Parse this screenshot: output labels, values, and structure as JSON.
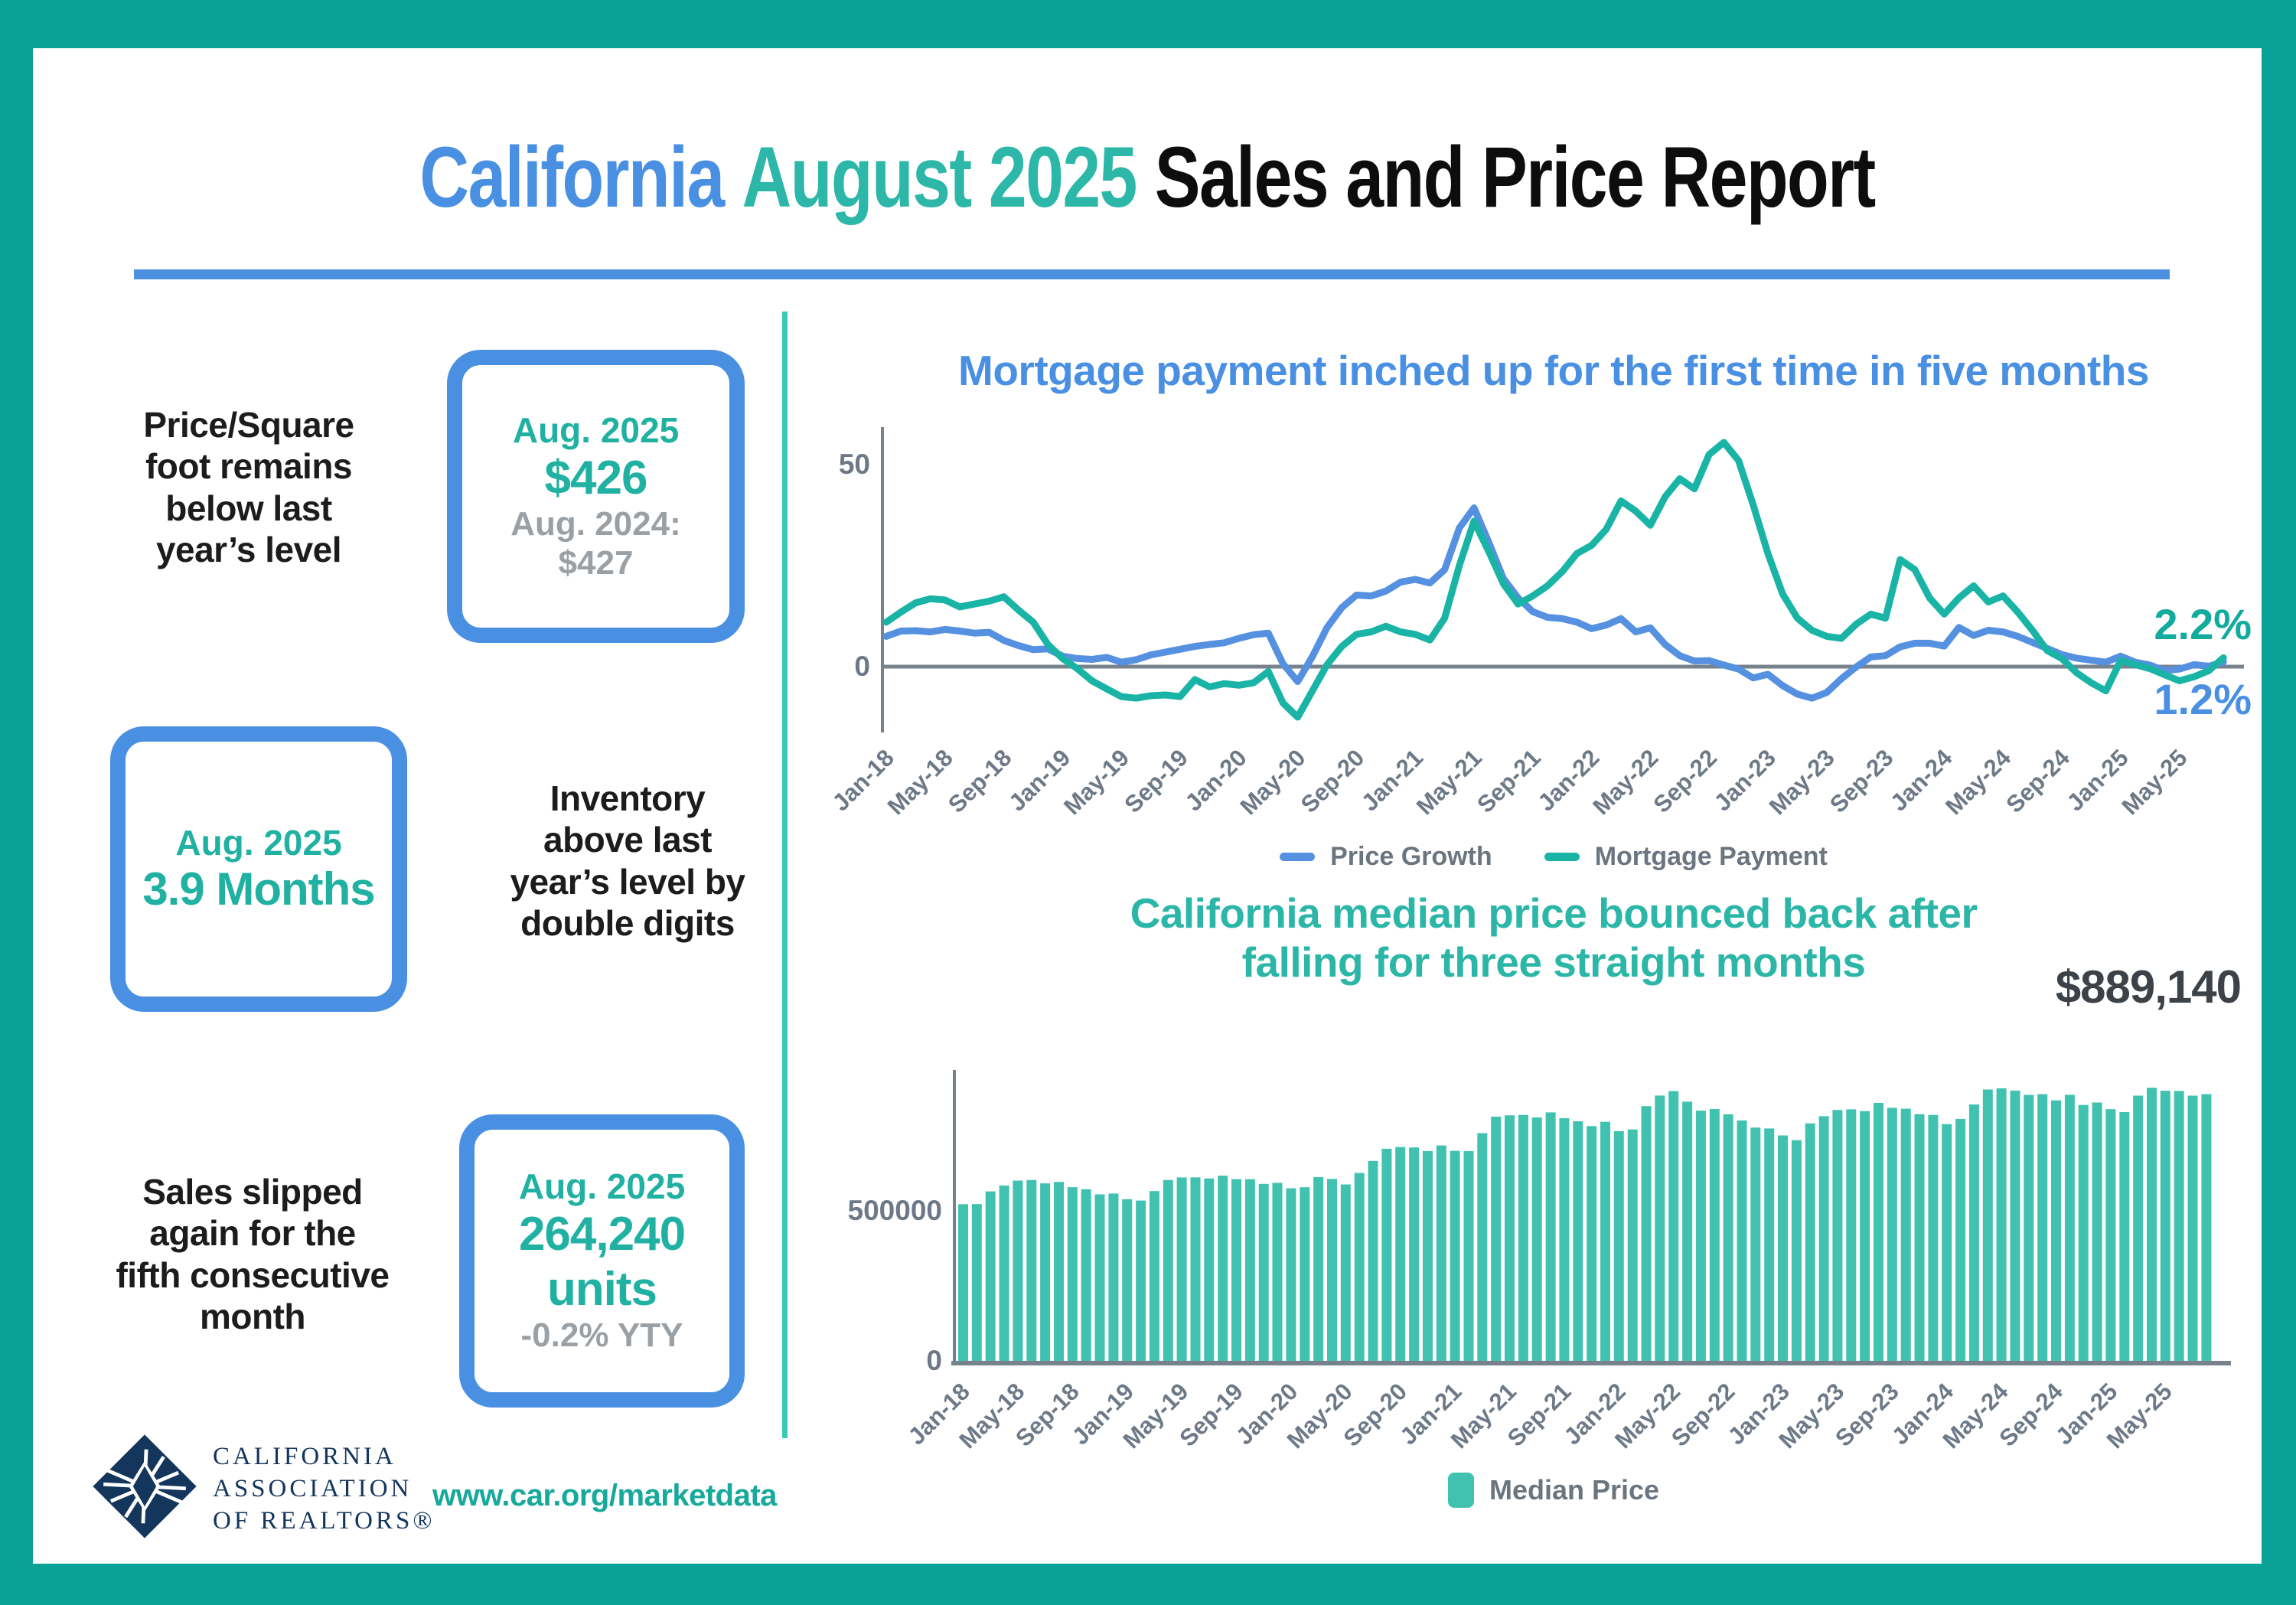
{
  "page": {
    "title": {
      "part1": "California",
      "part2": "August 2025",
      "part3": "Sales and Price Report"
    },
    "footer_url": "www.car.org/marketdata",
    "logo": {
      "line1": "CALIFORNIA",
      "line2": "ASSOCIATION",
      "line3": "OF REALTORS®"
    }
  },
  "colors": {
    "frame_teal": "#0aa296",
    "divider_teal": "#38cab9",
    "accent_blue": "#4a90e2",
    "teal_text": "#21b1a2",
    "line_blue": "#5591e0",
    "line_teal": "#19b4a6",
    "bar_teal": "#41c2b1",
    "gray_text": "#9aa0a4",
    "axis_gray": "#6e7987"
  },
  "stats": [
    {
      "label_lines": [
        "Price/Square",
        "foot remains",
        "below last",
        "year’s level"
      ],
      "box": {
        "period": "Aug. 2025",
        "value": "$426",
        "compare1": "Aug. 2024:",
        "compare2": "$427"
      }
    },
    {
      "label_lines": [
        "Inventory",
        "above last",
        "year’s level by",
        "double digits"
      ],
      "box": {
        "period": "Aug. 2025",
        "value": "3.9 Months"
      }
    },
    {
      "label_lines": [
        "Sales slipped",
        "again for the",
        "fifth consecutive",
        "month"
      ],
      "box": {
        "period": "Aug. 2025",
        "value": "264,240",
        "value2": "units",
        "compare1": "-0.2% YTY"
      }
    }
  ],
  "chart_data": [
    {
      "type": "line",
      "title": "Mortgage payment inched up for the first time in five months",
      "x_start": "Jan-18",
      "x_end": "Aug-25",
      "tick_labels": [
        "Jan-18",
        "May-18",
        "Sep-18",
        "Jan-19",
        "May-19",
        "Sep-19",
        "Jan-20",
        "May-20",
        "Sep-20",
        "Jan-21",
        "May-21",
        "Sep-21",
        "Jan-22",
        "May-22",
        "Sep-22",
        "Jan-23",
        "May-23",
        "Sep-23",
        "Jan-24",
        "May-24",
        "Sep-24",
        "Jan-25",
        "May-25"
      ],
      "yticks": [
        {
          "value": 50,
          "label": "50"
        },
        {
          "value": 0,
          "label": "0"
        }
      ],
      "ylim": [
        -16,
        58
      ],
      "legend_position": "bottom",
      "grid": false,
      "series": [
        {
          "name": "Price Growth",
          "color": "#5591e0",
          "values": [
            7.5,
            8.8,
            8.9,
            8.6,
            9.2,
            8.8,
            8.3,
            8.5,
            6.5,
            5.2,
            4.2,
            4.4,
            2.6,
            2.0,
            1.8,
            2.3,
            1.1,
            1.7,
            2.9,
            3.6,
            4.3,
            5.0,
            5.5,
            5.9,
            7.0,
            7.9,
            8.3,
            0.7,
            -3.7,
            2.5,
            9.7,
            14.6,
            17.7,
            17.5,
            18.7,
            20.9,
            21.6,
            20.7,
            24.0,
            34.3,
            39.3,
            30.8,
            21.8,
            17.0,
            13.6,
            12.2,
            11.9,
            11.0,
            9.4,
            10.3,
            11.9,
            8.6,
            9.6,
            5.5,
            2.7,
            1.4,
            1.5,
            0.4,
            -0.6,
            -2.8,
            -1.9,
            -4.7,
            -6.8,
            -7.8,
            -6.4,
            -3.0,
            -0.1,
            2.4,
            2.7,
            4.9,
            5.8,
            5.8,
            5.1,
            9.7,
            7.7,
            9.0,
            8.6,
            7.5,
            6.0,
            4.5,
            3.0,
            2.1,
            1.6,
            1.1,
            2.6,
            1.1,
            0.4,
            -1.0,
            -0.6,
            0.5,
            0.1,
            1.2
          ]
        },
        {
          "name": "Mortgage Payment",
          "color": "#19b4a6",
          "values": [
            11.0,
            13.5,
            15.8,
            16.8,
            16.5,
            14.8,
            15.5,
            16.2,
            17.3,
            14.0,
            11.0,
            5.5,
            2.0,
            -0.5,
            -3.5,
            -5.5,
            -7.4,
            -7.8,
            -7.2,
            -7.0,
            -7.4,
            -3.2,
            -5.0,
            -4.2,
            -4.6,
            -4.0,
            -1.2,
            -9.0,
            -12.5,
            -6.0,
            0.5,
            5.0,
            8.0,
            8.6,
            10.0,
            8.6,
            8.0,
            6.6,
            12.0,
            25.0,
            36.0,
            28.5,
            20.5,
            15.5,
            17.5,
            20.0,
            23.5,
            28.0,
            30.0,
            34.0,
            41.0,
            38.5,
            35.0,
            42.0,
            46.5,
            44.0,
            52.5,
            55.5,
            51.0,
            40.0,
            28.0,
            18.0,
            12.0,
            9.0,
            7.5,
            7.0,
            10.5,
            13.0,
            12.0,
            26.5,
            24.0,
            17.0,
            13.0,
            17.0,
            20.0,
            16.0,
            17.5,
            13.5,
            9.0,
            4.0,
            2.0,
            -1.5,
            -4.0,
            -6.0,
            1.5,
            0.5,
            -0.5,
            -2.0,
            -3.5,
            -2.5,
            -1.0,
            2.2
          ]
        }
      ],
      "end_labels": [
        {
          "text": "2.2%",
          "series": "Mortgage Payment",
          "color": "#12ab9d"
        },
        {
          "text": "1.2%",
          "series": "Price Growth",
          "color": "#4a90e2"
        }
      ]
    },
    {
      "type": "bar",
      "title_lines": [
        "California median price bounced back after",
        "falling for three straight months"
      ],
      "annotation": "$889,140",
      "legend": "Median Price",
      "bar_color": "#41c2b1",
      "x_start": "Jan-18",
      "x_end": "Aug-25",
      "tick_labels": [
        "Jan-18",
        "May-18",
        "Sep-18",
        "Jan-19",
        "May-19",
        "Sep-19",
        "Jan-20",
        "May-20",
        "Sep-20",
        "Jan-21",
        "May-21",
        "Sep-21",
        "Jan-22",
        "May-22",
        "Sep-22",
        "Jan-23",
        "May-23",
        "Sep-23",
        "Jan-24",
        "May-24",
        "Sep-24",
        "Jan-25",
        "May-25"
      ],
      "yticks": [
        {
          "value": 500000,
          "label": "500000"
        },
        {
          "value": 0,
          "label": "0"
        }
      ],
      "ylim": [
        0,
        950000
      ],
      "values": [
        522000,
        522500,
        564830,
        584460,
        600860,
        602760,
        591460,
        596410,
        578850,
        572000,
        554760,
        557600,
        538690,
        534140,
        565880,
        602920,
        611190,
        611420,
        607990,
        617410,
        605680,
        605280,
        589770,
        593450,
        575160,
        578690,
        612440,
        606410,
        588070,
        626170,
        666320,
        706900,
        712430,
        711300,
        698980,
        717930,
        699890,
        699000,
        758990,
        813980,
        818260,
        819630,
        811170,
        827940,
        808890,
        798440,
        782480,
        796570,
        765580,
        771270,
        849080,
        884090,
        898980,
        863790,
        833910,
        839460,
        821680,
        801190,
        777500,
        774580,
        751330,
        735480,
        791490,
        815340,
        836110,
        838260,
        832340,
        859800,
        843340,
        840360,
        822200,
        819740,
        788940,
        806490,
        854490,
        904210,
        908040,
        900720,
        886560,
        888740,
        868150,
        886700,
        852880,
        861020,
        838850,
        829060,
        884050,
        910160,
        900170,
        899560,
        884050,
        889140
      ]
    }
  ]
}
